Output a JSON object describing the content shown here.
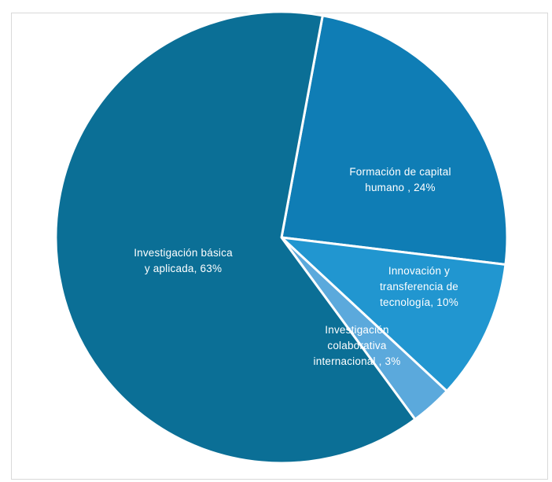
{
  "chart_data": {
    "type": "pie",
    "slices": [
      {
        "label_lines": [
          "Formación de capital",
          "humano , 24%"
        ],
        "value": 24,
        "color": "#0f7db5"
      },
      {
        "label_lines": [
          "Innovación y",
          "transferencia de",
          "tecnología, 10%"
        ],
        "value": 10,
        "color": "#2196d0"
      },
      {
        "label_lines": [
          "Investigación",
          "colaborativa",
          "internacional , 3%"
        ],
        "value": 3,
        "color": "#5ba9dc"
      },
      {
        "label_lines": [
          "Investigación básica",
          "y aplicada, 63%"
        ],
        "value": 63,
        "color": "#0b6f96"
      }
    ],
    "label_color": "#ffffff",
    "border_color": "#ffffff"
  }
}
